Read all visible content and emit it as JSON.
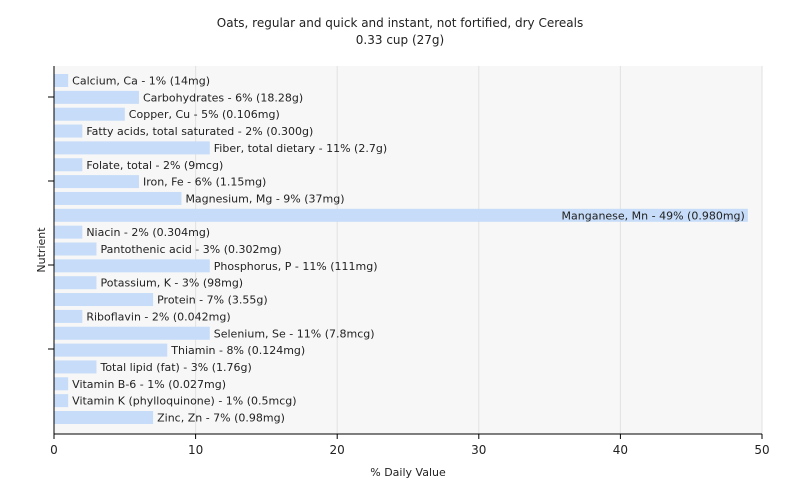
{
  "chart_data": {
    "type": "bar",
    "orientation": "horizontal",
    "title": "Oats, regular and quick and instant, not fortified, dry Cereals",
    "subtitle": "0.33 cup (27g)",
    "xlabel": "% Daily Value",
    "ylabel": "Nutrient",
    "xlim": [
      0,
      50
    ],
    "xticks": [
      0,
      10,
      20,
      30,
      40,
      50
    ],
    "grid": true,
    "bar_color": "#c6dcf8",
    "categories": [
      "Calcium, Ca",
      "Carbohydrates",
      "Copper, Cu",
      "Fatty acids, total saturated",
      "Fiber, total dietary",
      "Folate, total",
      "Iron, Fe",
      "Magnesium, Mg",
      "Manganese, Mn",
      "Niacin",
      "Pantothenic acid",
      "Phosphorus, P",
      "Potassium, K",
      "Protein",
      "Riboflavin",
      "Selenium, Se",
      "Thiamin",
      "Total lipid (fat)",
      "Vitamin B-6",
      "Vitamin K (phylloquinone)",
      "Zinc, Zn"
    ],
    "values": [
      1,
      6,
      5,
      2,
      11,
      2,
      6,
      9,
      49,
      2,
      3,
      11,
      3,
      7,
      2,
      11,
      8,
      3,
      1,
      1,
      7
    ],
    "labels": [
      "Calcium, Ca - 1% (14mg)",
      "Carbohydrates - 6% (18.28g)",
      "Copper, Cu - 5% (0.106mg)",
      "Fatty acids, total saturated - 2% (0.300g)",
      "Fiber, total dietary - 11% (2.7g)",
      "Folate, total - 2% (9mcg)",
      "Iron, Fe - 6% (1.15mg)",
      "Magnesium, Mg - 9% (37mg)",
      "Manganese, Mn - 49% (0.980mg)",
      "Niacin - 2% (0.304mg)",
      "Pantothenic acid - 3% (0.302mg)",
      "Phosphorus, P - 11% (111mg)",
      "Potassium, K - 3% (98mg)",
      "Protein - 7% (3.55g)",
      "Riboflavin - 2% (0.042mg)",
      "Selenium, Se - 11% (7.8mcg)",
      "Thiamin - 8% (0.124mg)",
      "Total lipid (fat) - 3% (1.76g)",
      "Vitamin B-6 - 1% (0.027mg)",
      "Vitamin K (phylloquinone) - 1% (0.5mcg)",
      "Zinc, Zn - 7% (0.98mg)"
    ]
  }
}
